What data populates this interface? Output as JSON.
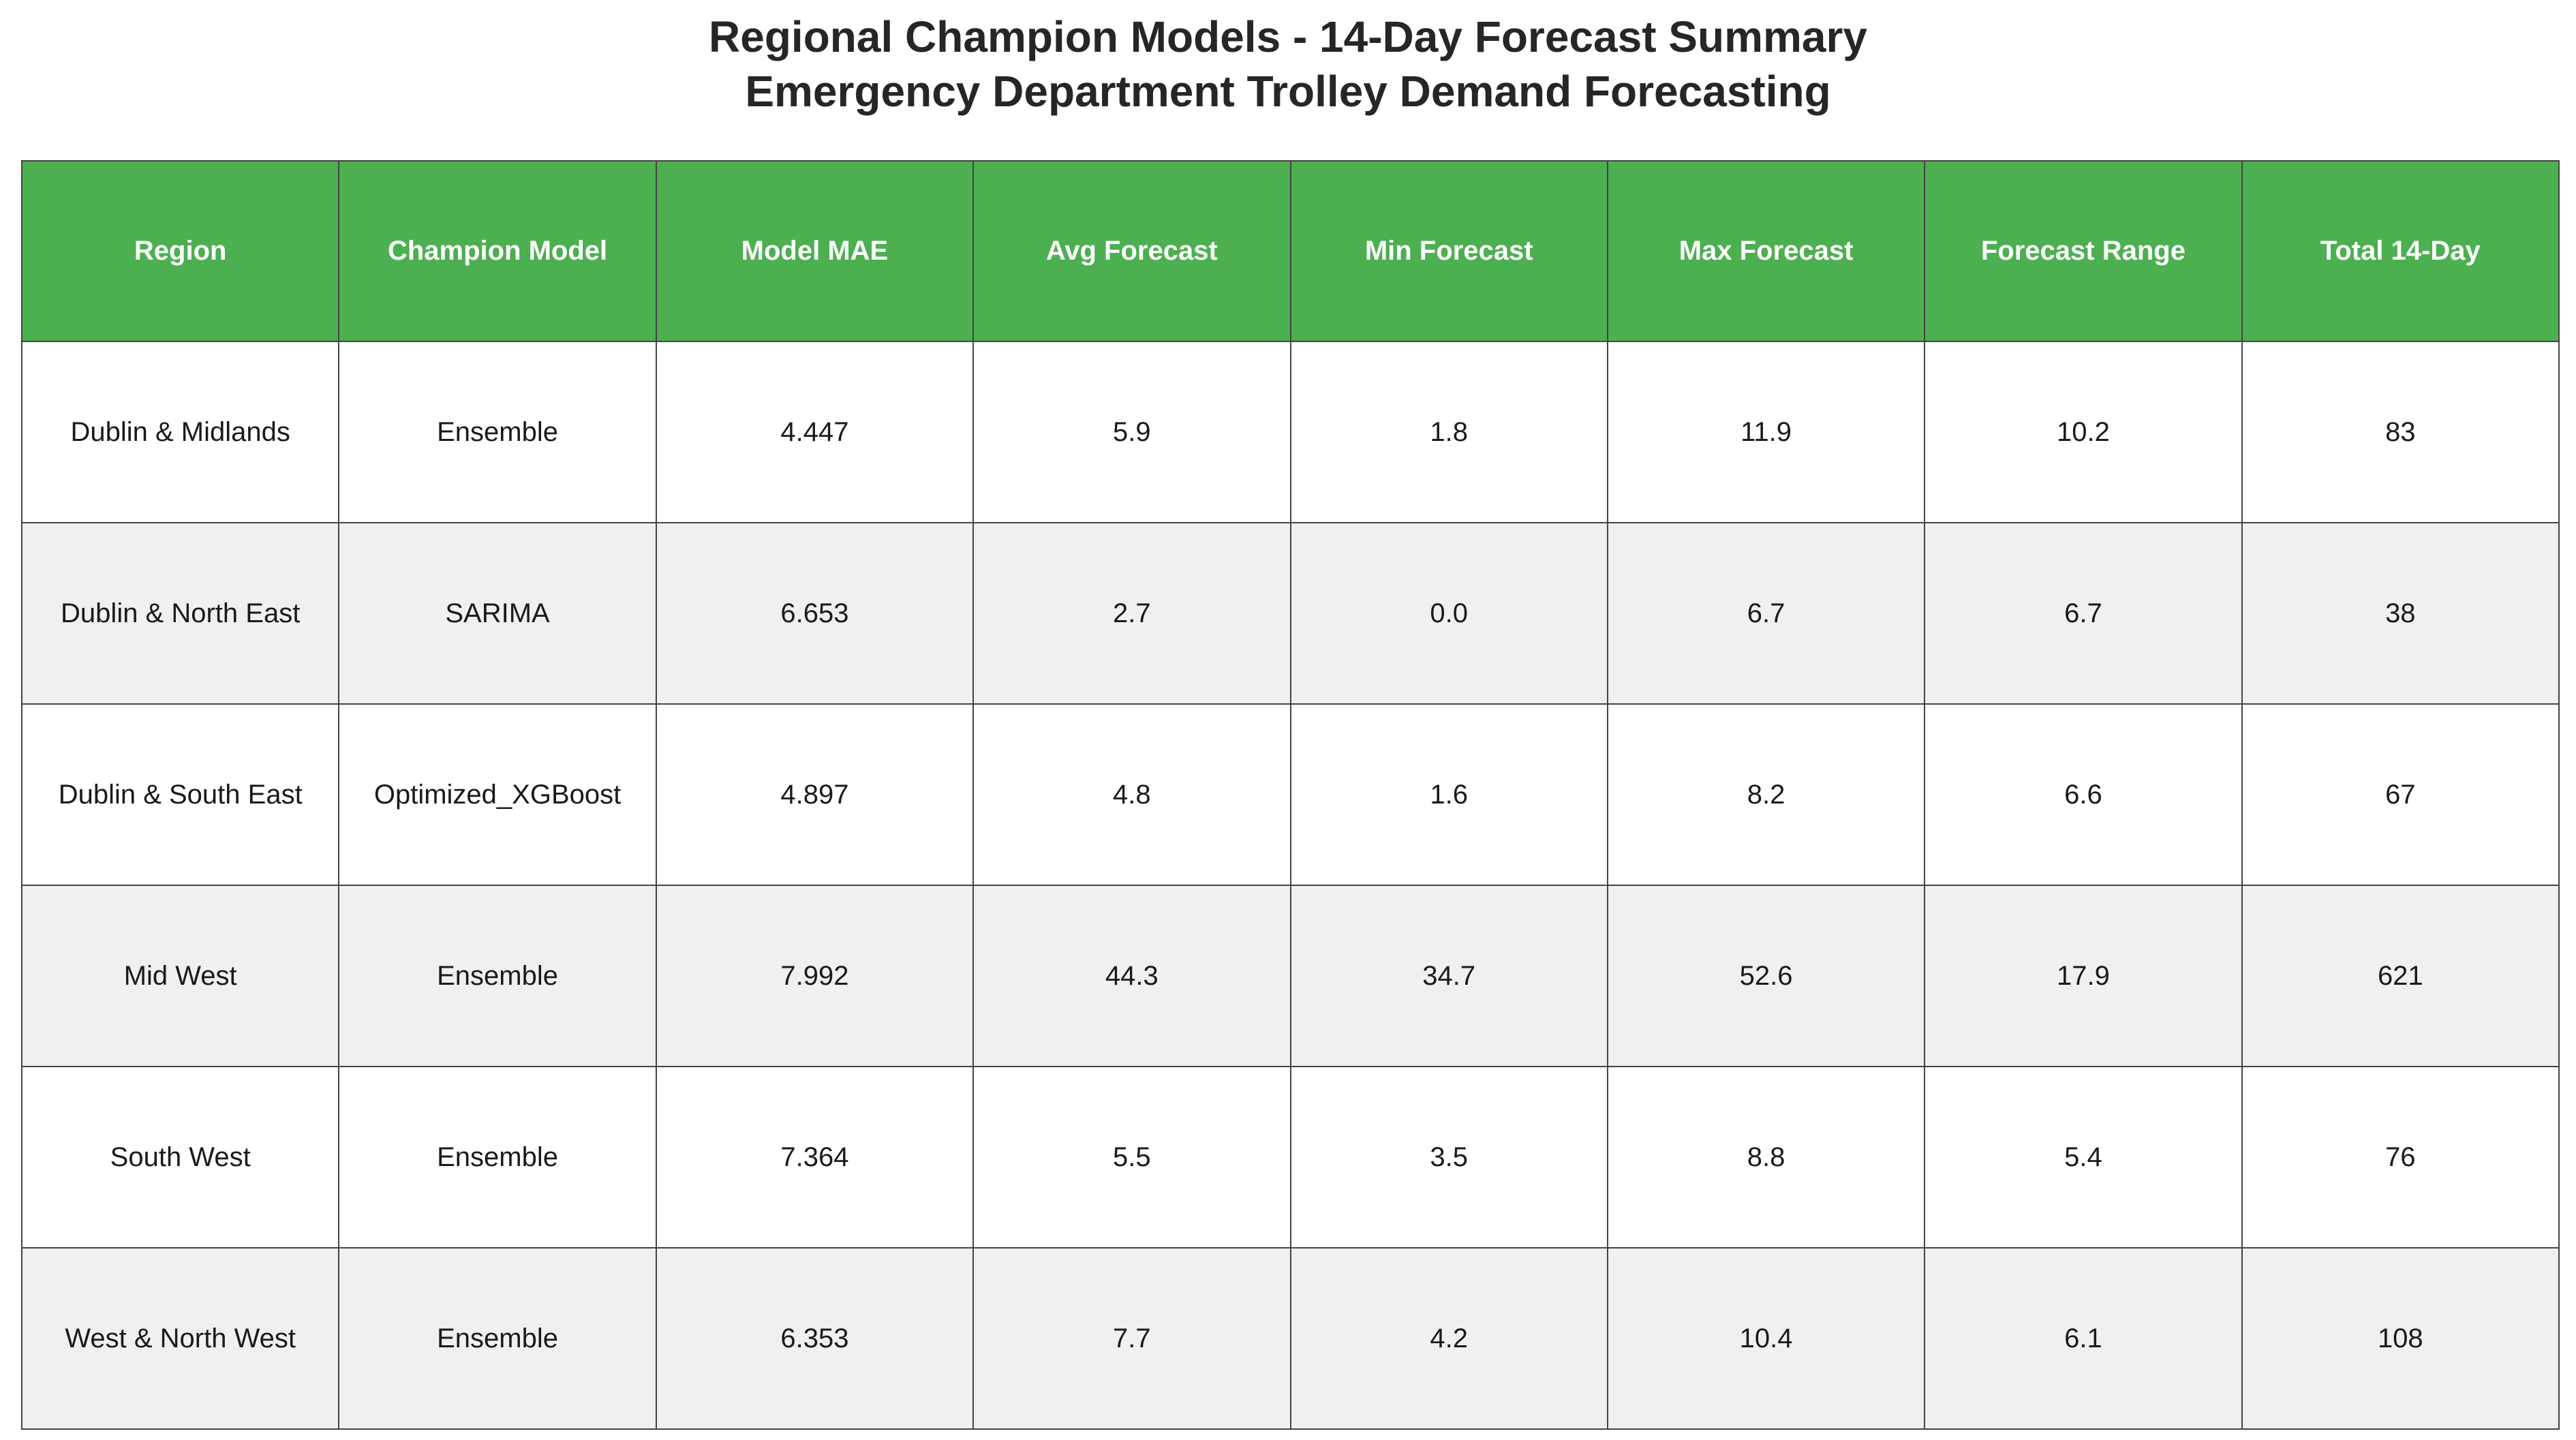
{
  "title_line1": "Regional Champion Models - 14-Day Forecast Summary",
  "title_line2": "Emergency Department Trolley Demand Forecasting",
  "colors": {
    "header_background": "#4caf50",
    "header_text": "#ffffff",
    "row_alternate": "#f0f0f0",
    "row_plain": "#ffffff",
    "border": "#444444"
  },
  "chart_data": {
    "type": "table",
    "title": "Regional Champion Models - 14-Day Forecast Summary\nEmergency Department Trolley Demand Forecasting",
    "columns": [
      "Region",
      "Champion Model",
      "Model MAE",
      "Avg Forecast",
      "Min Forecast",
      "Max Forecast",
      "Forecast Range",
      "Total 14-Day"
    ],
    "rows": [
      [
        "Dublin & Midlands",
        "Ensemble",
        "4.447",
        "5.9",
        "1.8",
        "11.9",
        "10.2",
        "83"
      ],
      [
        "Dublin & North East",
        "SARIMA",
        "6.653",
        "2.7",
        "0.0",
        "6.7",
        "6.7",
        "38"
      ],
      [
        "Dublin & South East",
        "Optimized_XGBoost",
        "4.897",
        "4.8",
        "1.6",
        "8.2",
        "6.6",
        "67"
      ],
      [
        "Mid West",
        "Ensemble",
        "7.992",
        "44.3",
        "34.7",
        "52.6",
        "17.9",
        "621"
      ],
      [
        "South West",
        "Ensemble",
        "7.364",
        "5.5",
        "3.5",
        "8.8",
        "5.4",
        "76"
      ],
      [
        "West & North West",
        "Ensemble",
        "6.353",
        "7.7",
        "4.2",
        "10.4",
        "6.1",
        "108"
      ]
    ]
  }
}
